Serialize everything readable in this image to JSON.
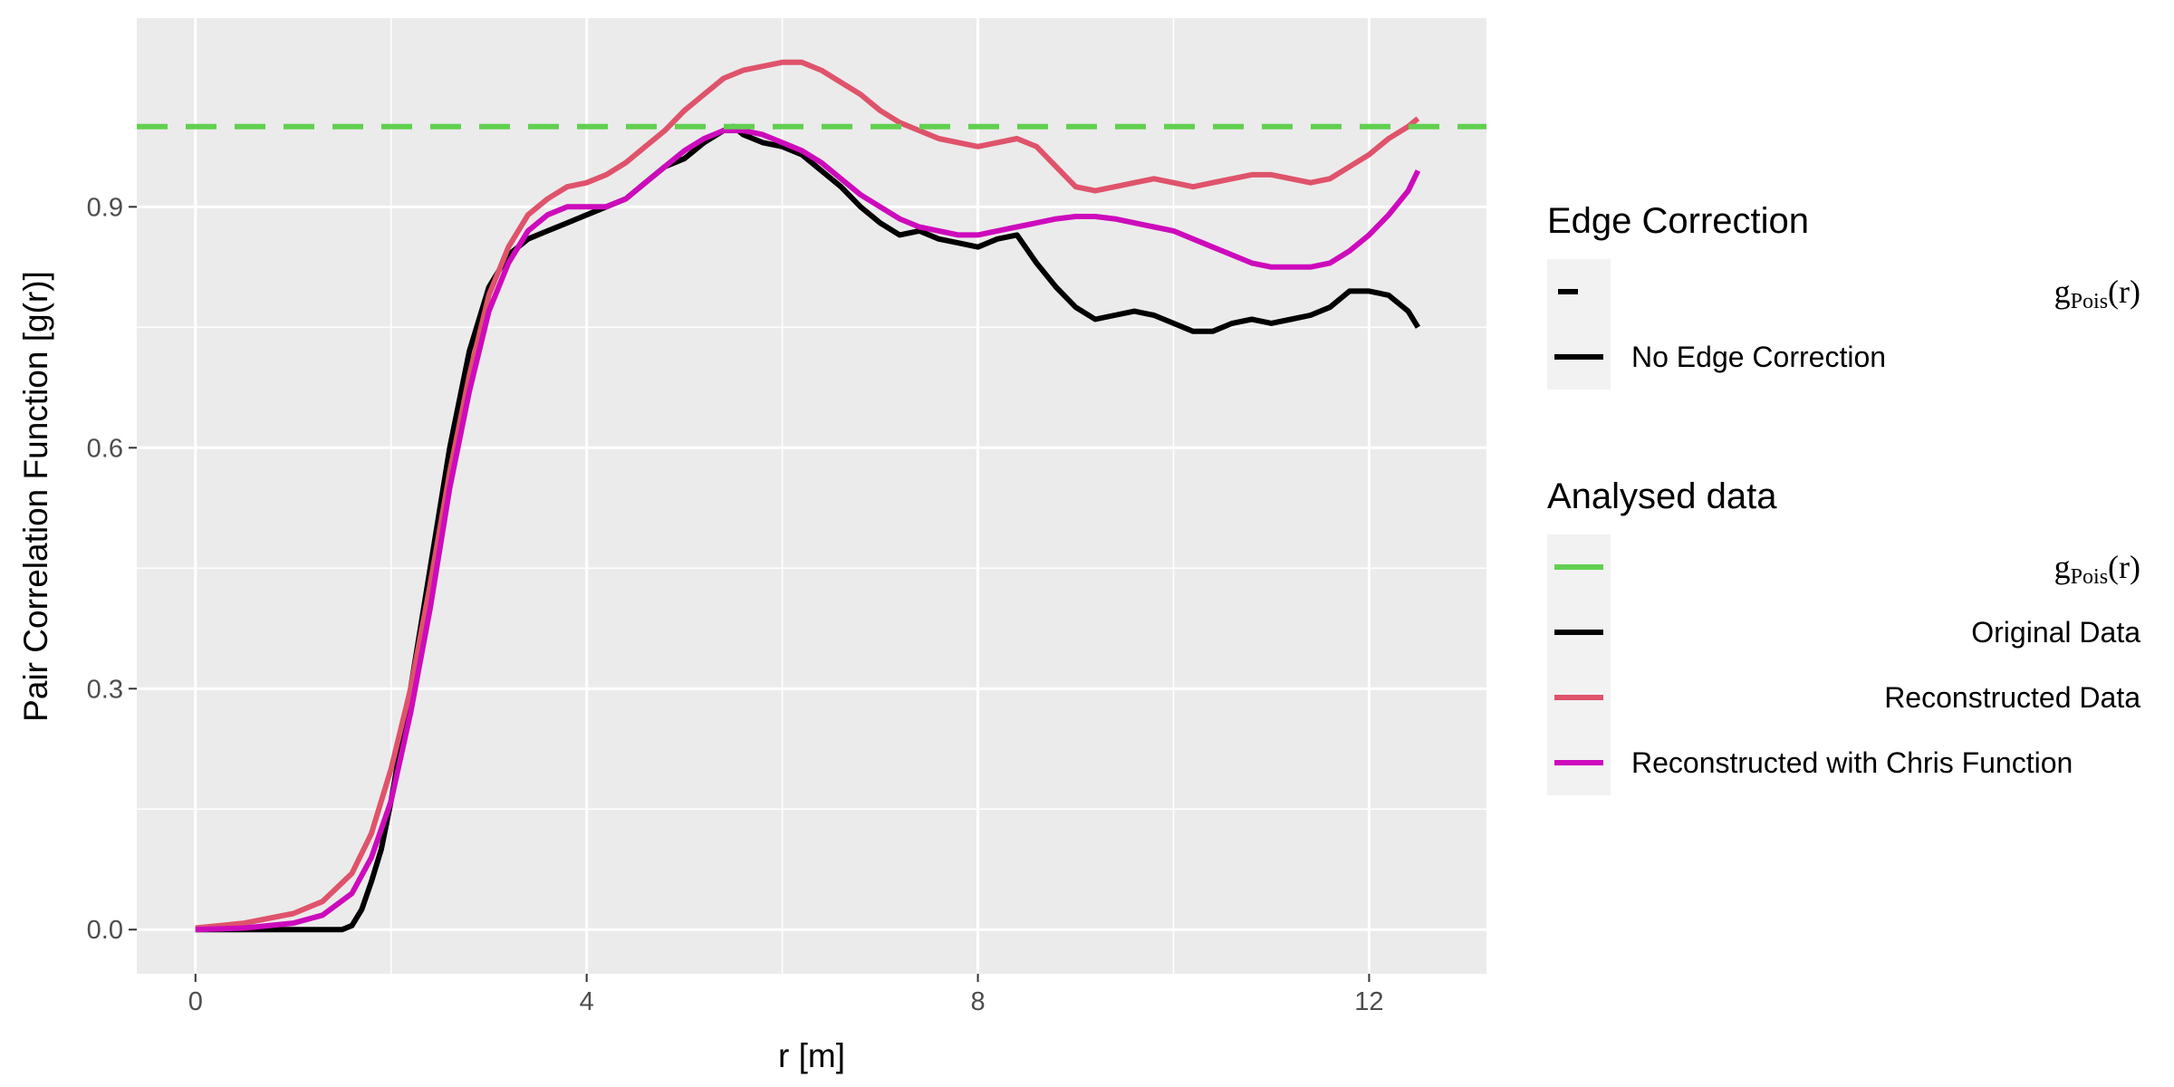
{
  "chart_data": {
    "type": "line",
    "xlabel": "r [m]",
    "ylabel": "Pair Correlation Function [g(r)]",
    "xlim": [
      -0.6,
      13.2
    ],
    "ylim": [
      -0.055,
      1.135
    ],
    "x_ticks": [
      0,
      4,
      8,
      12
    ],
    "y_ticks": [
      0.0,
      0.3,
      0.6,
      0.9
    ],
    "x_tick_labels": [
      "0",
      "4",
      "8",
      "12"
    ],
    "y_tick_labels": [
      "0.0",
      "0.3",
      "0.6",
      "0.9"
    ],
    "grid": true,
    "legend_position": "right",
    "series": [
      {
        "name": "Original Data",
        "color": "#000000",
        "dash": "solid",
        "x": [
          0,
          0.5,
          1.0,
          1.5,
          1.6,
          1.7,
          1.8,
          1.9,
          2.0,
          2.2,
          2.4,
          2.6,
          2.8,
          3.0,
          3.2,
          3.4,
          3.6,
          3.8,
          4.0,
          4.2,
          4.4,
          4.6,
          4.8,
          5.0,
          5.2,
          5.4,
          5.5,
          5.6,
          5.8,
          6.0,
          6.2,
          6.4,
          6.6,
          6.8,
          7.0,
          7.2,
          7.4,
          7.6,
          7.8,
          8.0,
          8.2,
          8.4,
          8.6,
          8.8,
          9.0,
          9.2,
          9.4,
          9.6,
          9.8,
          10.0,
          10.2,
          10.4,
          10.6,
          10.8,
          11.0,
          11.2,
          11.4,
          11.6,
          11.8,
          12.0,
          12.2,
          12.4,
          12.5
        ],
        "y": [
          0,
          0,
          0,
          0,
          0.005,
          0.025,
          0.06,
          0.1,
          0.16,
          0.3,
          0.45,
          0.6,
          0.72,
          0.8,
          0.84,
          0.86,
          0.87,
          0.88,
          0.89,
          0.9,
          0.91,
          0.93,
          0.95,
          0.96,
          0.98,
          0.995,
          1.0,
          0.99,
          0.98,
          0.975,
          0.965,
          0.945,
          0.925,
          0.9,
          0.88,
          0.865,
          0.87,
          0.86,
          0.855,
          0.85,
          0.86,
          0.865,
          0.83,
          0.8,
          0.775,
          0.76,
          0.765,
          0.77,
          0.765,
          0.755,
          0.745,
          0.745,
          0.755,
          0.76,
          0.755,
          0.76,
          0.765,
          0.775,
          0.795,
          0.795,
          0.79,
          0.77,
          0.75
        ]
      },
      {
        "name": "Reconstructed Data",
        "color": "#df536b",
        "dash": "solid",
        "x": [
          0,
          0.5,
          1.0,
          1.3,
          1.6,
          1.8,
          2.0,
          2.2,
          2.4,
          2.6,
          2.8,
          3.0,
          3.2,
          3.4,
          3.6,
          3.8,
          4.0,
          4.2,
          4.4,
          4.6,
          4.8,
          5.0,
          5.2,
          5.4,
          5.6,
          5.8,
          6.0,
          6.2,
          6.4,
          6.6,
          6.8,
          7.0,
          7.2,
          7.4,
          7.6,
          7.8,
          8.0,
          8.2,
          8.4,
          8.6,
          8.8,
          9.0,
          9.2,
          9.4,
          9.6,
          9.8,
          10.0,
          10.2,
          10.4,
          10.6,
          10.8,
          11.0,
          11.2,
          11.4,
          11.6,
          11.8,
          12.0,
          12.2,
          12.4,
          12.5
        ],
        "y": [
          0.002,
          0.008,
          0.02,
          0.035,
          0.07,
          0.12,
          0.2,
          0.3,
          0.43,
          0.57,
          0.69,
          0.79,
          0.85,
          0.89,
          0.91,
          0.925,
          0.93,
          0.94,
          0.955,
          0.975,
          0.995,
          1.02,
          1.04,
          1.06,
          1.07,
          1.075,
          1.08,
          1.08,
          1.07,
          1.055,
          1.04,
          1.02,
          1.005,
          0.995,
          0.985,
          0.98,
          0.975,
          0.98,
          0.985,
          0.975,
          0.95,
          0.925,
          0.92,
          0.925,
          0.93,
          0.935,
          0.93,
          0.925,
          0.93,
          0.935,
          0.94,
          0.94,
          0.935,
          0.93,
          0.935,
          0.95,
          0.965,
          0.985,
          1.0,
          1.01
        ]
      },
      {
        "name": "Reconstructed with Chris Function",
        "color": "#cd0bbc",
        "dash": "solid",
        "x": [
          0,
          0.5,
          1.0,
          1.3,
          1.6,
          1.8,
          2.0,
          2.2,
          2.4,
          2.6,
          2.8,
          3.0,
          3.2,
          3.4,
          3.6,
          3.8,
          4.0,
          4.2,
          4.4,
          4.6,
          4.8,
          5.0,
          5.2,
          5.4,
          5.6,
          5.8,
          6.0,
          6.2,
          6.4,
          6.6,
          6.8,
          7.0,
          7.2,
          7.4,
          7.6,
          7.8,
          8.0,
          8.2,
          8.4,
          8.6,
          8.8,
          9.0,
          9.2,
          9.4,
          9.6,
          9.8,
          10.0,
          10.2,
          10.4,
          10.6,
          10.8,
          11.0,
          11.2,
          11.4,
          11.6,
          11.8,
          12.0,
          12.2,
          12.4,
          12.5
        ],
        "y": [
          0,
          0.002,
          0.008,
          0.018,
          0.045,
          0.09,
          0.16,
          0.27,
          0.4,
          0.55,
          0.67,
          0.77,
          0.83,
          0.87,
          0.89,
          0.9,
          0.9,
          0.9,
          0.91,
          0.93,
          0.95,
          0.97,
          0.985,
          0.995,
          0.995,
          0.99,
          0.98,
          0.97,
          0.955,
          0.935,
          0.915,
          0.9,
          0.885,
          0.875,
          0.87,
          0.865,
          0.865,
          0.87,
          0.875,
          0.88,
          0.885,
          0.888,
          0.888,
          0.885,
          0.88,
          0.875,
          0.87,
          0.86,
          0.85,
          0.84,
          0.83,
          0.825,
          0.825,
          0.825,
          0.83,
          0.845,
          0.865,
          0.89,
          0.92,
          0.945
        ]
      },
      {
        "name": "gPois(r)",
        "color": "#61d04f",
        "dash": "dashed",
        "x": [
          -0.6,
          13.2
        ],
        "y": [
          1.0,
          1.0
        ]
      }
    ]
  },
  "legend": {
    "edge": {
      "title": "Edge Correction",
      "items": [
        {
          "label": "",
          "math": {
            "base": "g",
            "sub": "Pois",
            "tail": "(r)"
          },
          "color": "#000000",
          "dash": "dashed",
          "align": "right"
        },
        {
          "label": "No Edge Correction",
          "color": "#000000",
          "dash": "solid",
          "align": "left"
        }
      ]
    },
    "data": {
      "title": "Analysed data",
      "items": [
        {
          "label": "",
          "math": {
            "base": "g",
            "sub": "Pois",
            "tail": "(r)"
          },
          "color": "#61d04f",
          "dash": "solid",
          "align": "right"
        },
        {
          "label": "Original Data",
          "color": "#000000",
          "dash": "solid",
          "align": "right"
        },
        {
          "label": "Reconstructed Data",
          "color": "#df536b",
          "dash": "solid",
          "align": "right"
        },
        {
          "label": "Reconstructed with Chris Function",
          "color": "#cd0bbc",
          "dash": "solid",
          "align": "left"
        }
      ]
    }
  }
}
